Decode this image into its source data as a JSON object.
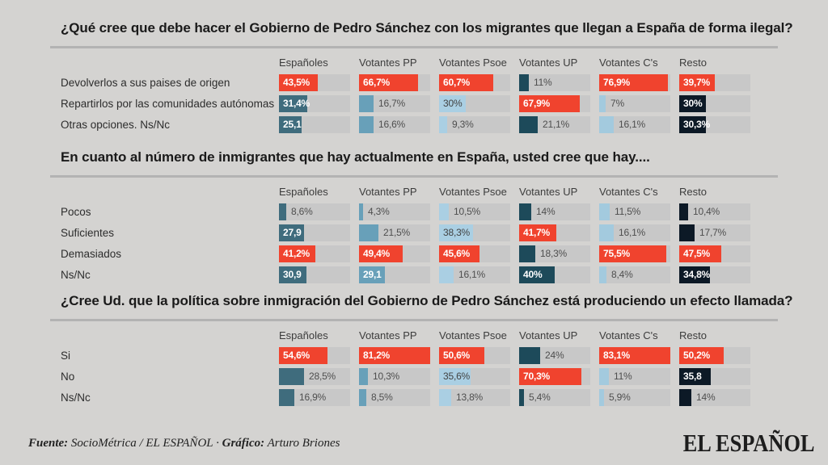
{
  "palette": {
    "background": "#d4d3d1",
    "bar_track": "#c8c8c8",
    "divider": "#b3b3b3",
    "highlight_red": "#f0432e"
  },
  "columns": [
    {
      "label": "Españoles",
      "color": "#3f6c7d",
      "light": false
    },
    {
      "label": "Votantes PP",
      "color": "#68a0b9",
      "light": false
    },
    {
      "label": "Votantes Psoe",
      "color": "#aacfe3",
      "light": true
    },
    {
      "label": "Votantes UP",
      "color": "#1d4a5a",
      "light": false
    },
    {
      "label": "Votantes C's",
      "color": "#a3cade",
      "light": true
    },
    {
      "label": "Resto",
      "color": "#0c1926",
      "light": false
    }
  ],
  "chart_data": [
    {
      "type": "bar",
      "title": "¿Qué cree que debe hacer el Gobierno de Pedro Sánchez con los migrantes que llegan a España de forma ilegal?",
      "categories": [
        "Devolverlos a sus paises de origen",
        "Repartirlos por las comunidades autónomas",
        "Otras opciones. Ns/Nc"
      ],
      "series": [
        {
          "name": "Españoles",
          "values": [
            43.5,
            31.4,
            25.1
          ],
          "labels": [
            "43,5%",
            "31,4%",
            "25,1"
          ],
          "label_inside": [
            true,
            true,
            true
          ]
        },
        {
          "name": "Votantes PP",
          "values": [
            66.7,
            16.7,
            16.6
          ],
          "labels": [
            "66,7%",
            "16,7%",
            "16,6%"
          ],
          "label_inside": [
            true,
            false,
            false
          ]
        },
        {
          "name": "Votantes Psoe",
          "values": [
            60.7,
            30.0,
            9.3
          ],
          "labels": [
            "60,7%",
            "30%",
            "9,3%"
          ],
          "label_inside": [
            true,
            true,
            false
          ]
        },
        {
          "name": "Votantes UP",
          "values": [
            11.0,
            67.9,
            21.1
          ],
          "labels": [
            "11%",
            "67,9%",
            "21,1%"
          ],
          "label_inside": [
            false,
            true,
            false
          ]
        },
        {
          "name": "Votantes C's",
          "values": [
            76.9,
            7.0,
            16.1
          ],
          "labels": [
            "76,9%",
            "7%",
            "16,1%"
          ],
          "label_inside": [
            true,
            false,
            false
          ]
        },
        {
          "name": "Resto",
          "values": [
            39.7,
            30.0,
            30.3
          ],
          "labels": [
            "39,7%",
            "30%",
            "30,3%"
          ],
          "label_inside": [
            true,
            true,
            true
          ]
        }
      ]
    },
    {
      "type": "bar",
      "title": "En cuanto al número de inmigrantes que hay actualmente en España, usted cree que hay....",
      "categories": [
        "Pocos",
        "Suficientes",
        "Demasiados",
        "Ns/Nc"
      ],
      "series": [
        {
          "name": "Españoles",
          "values": [
            8.6,
            27.9,
            41.2,
            30.9
          ],
          "labels": [
            "8,6%",
            "27,9",
            "41,2%",
            "30,9"
          ],
          "label_inside": [
            false,
            true,
            true,
            true
          ]
        },
        {
          "name": "Votantes PP",
          "values": [
            4.3,
            21.5,
            49.4,
            29.1
          ],
          "labels": [
            "4,3%",
            "21,5%",
            "49,4%",
            "29,1"
          ],
          "label_inside": [
            false,
            false,
            true,
            true
          ]
        },
        {
          "name": "Votantes Psoe",
          "values": [
            10.5,
            38.3,
            45.6,
            16.1
          ],
          "labels": [
            "10,5%",
            "38,3%",
            "45,6%",
            "16,1%"
          ],
          "label_inside": [
            false,
            true,
            true,
            false
          ]
        },
        {
          "name": "Votantes UP",
          "values": [
            14.0,
            41.7,
            18.3,
            40.0
          ],
          "labels": [
            "14%",
            "41,7%",
            "18,3%",
            "40%"
          ],
          "label_inside": [
            false,
            true,
            false,
            true
          ]
        },
        {
          "name": "Votantes C's",
          "values": [
            11.5,
            16.1,
            75.5,
            8.4
          ],
          "labels": [
            "11,5%",
            "16,1%",
            "75,5%",
            "8,4%"
          ],
          "label_inside": [
            false,
            false,
            true,
            false
          ]
        },
        {
          "name": "Resto",
          "values": [
            10.4,
            17.7,
            47.5,
            34.8
          ],
          "labels": [
            "10,4%",
            "17,7%",
            "47,5%",
            "34,8%"
          ],
          "label_inside": [
            false,
            false,
            true,
            true
          ]
        }
      ]
    },
    {
      "type": "bar",
      "title": "¿Cree Ud. que la política sobre inmigración del Gobierno de Pedro Sánchez está produciendo un efecto llamada?",
      "categories": [
        "Si",
        "No",
        "Ns/Nc"
      ],
      "series": [
        {
          "name": "Españoles",
          "values": [
            54.6,
            28.5,
            16.9
          ],
          "labels": [
            "54,6%",
            "28,5%",
            "16,9%"
          ],
          "label_inside": [
            true,
            false,
            false
          ]
        },
        {
          "name": "Votantes PP",
          "values": [
            81.2,
            10.3,
            8.5
          ],
          "labels": [
            "81,2%",
            "10,3%",
            "8,5%"
          ],
          "label_inside": [
            true,
            false,
            false
          ]
        },
        {
          "name": "Votantes Psoe",
          "values": [
            50.6,
            35.6,
            13.8
          ],
          "labels": [
            "50,6%",
            "35,6%",
            "13,8%"
          ],
          "label_inside": [
            true,
            true,
            false
          ]
        },
        {
          "name": "Votantes UP",
          "values": [
            24.0,
            70.3,
            5.4
          ],
          "labels": [
            "24%",
            "70,3%",
            "5,4%"
          ],
          "label_inside": [
            false,
            true,
            false
          ]
        },
        {
          "name": "Votantes C's",
          "values": [
            83.1,
            11.0,
            5.9
          ],
          "labels": [
            "83,1%",
            "11%",
            "5,9%"
          ],
          "label_inside": [
            true,
            false,
            false
          ]
        },
        {
          "name": "Resto",
          "values": [
            50.2,
            35.8,
            14.0
          ],
          "labels": [
            "50,2%",
            "35,8",
            "14%"
          ],
          "label_inside": [
            true,
            true,
            false
          ]
        }
      ]
    }
  ],
  "footer": {
    "fuente_label": "Fuente:",
    "fuente_value": "SocioMétrica / EL ESPAÑOL",
    "separator": "·",
    "grafico_label": "Gráfico:",
    "grafico_value": "Arturo Briones",
    "logo": "EL ESPAÑOL"
  }
}
